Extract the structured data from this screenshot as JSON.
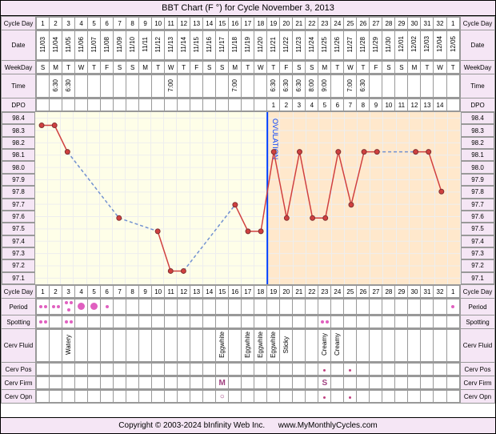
{
  "title": "BBT Chart (F °) for Cycle November 3, 2013",
  "copyright_text": "Copyright © 2003-2024 bInfinity Web Inc.",
  "site_url": "www.MyMonthlyCycles.com",
  "labels": {
    "cycle_day": "Cycle Day",
    "date": "Date",
    "weekday": "WeekDay",
    "time": "Time",
    "dpo": "DPO",
    "period": "Period",
    "spotting": "Spotting",
    "cerv_fluid": "Cerv Fluid",
    "cerv_pos": "Cerv Pos",
    "cerv_firm": "Cerv Firm",
    "cerv_opn": "Cerv Opn",
    "ovulation": "OVULATION"
  },
  "y_axis": {
    "min": 97.1,
    "max": 98.4,
    "step": 0.1,
    "ticks": [
      "98.4",
      "98.3",
      "98.2",
      "98.1",
      "98.0",
      "97.9",
      "97.8",
      "97.7",
      "97.6",
      "97.5",
      "97.4",
      "97.3",
      "97.2",
      "97.1"
    ]
  },
  "ovulation_day": 18,
  "n_days": 33,
  "colors": {
    "pre_ov_bg": "#fefee8",
    "post_ov_bg": "#ffe8cc",
    "line_solid": "#d04040",
    "line_dashed": "#7090d0",
    "ov_line": "#0040ff",
    "header_bg": "#f5e6f5",
    "point_fill": "#d04040"
  },
  "rows": {
    "cycle_day": [
      "1",
      "2",
      "3",
      "4",
      "5",
      "6",
      "7",
      "8",
      "9",
      "10",
      "11",
      "12",
      "13",
      "14",
      "15",
      "16",
      "17",
      "18",
      "19",
      "20",
      "21",
      "22",
      "23",
      "24",
      "25",
      "26",
      "27",
      "28",
      "29",
      "30",
      "31",
      "32",
      "1"
    ],
    "date": [
      "11/03",
      "11/04",
      "11/05",
      "11/06",
      "11/07",
      "11/08",
      "11/09",
      "11/10",
      "11/11",
      "11/12",
      "11/13",
      "11/14",
      "11/15",
      "11/16",
      "11/17",
      "11/18",
      "11/19",
      "11/20",
      "11/21",
      "11/22",
      "11/23",
      "11/24",
      "11/25",
      "11/26",
      "11/27",
      "11/28",
      "11/29",
      "11/30",
      "12/01",
      "12/02",
      "12/03",
      "12/04",
      "12/05"
    ],
    "weekday": [
      "S",
      "M",
      "T",
      "W",
      "T",
      "F",
      "S",
      "S",
      "M",
      "T",
      "W",
      "T",
      "F",
      "S",
      "S",
      "M",
      "T",
      "W",
      "T",
      "F",
      "S",
      "S",
      "M",
      "T",
      "W",
      "T",
      "F",
      "S",
      "S",
      "M",
      "T",
      "W",
      "T"
    ],
    "time": [
      "",
      "6:30",
      "6:30",
      "",
      "",
      "",
      "",
      "",
      "",
      "",
      "7:00",
      "",
      "",
      "",
      "",
      "7:00",
      "",
      "",
      "6:30",
      "6:30",
      "6:30",
      "8:00",
      "9:00",
      "",
      "7:00",
      "6:30",
      "",
      "",
      "",
      "",
      "",
      "",
      ""
    ],
    "dpo": [
      "",
      "",
      "",
      "",
      "",
      "",
      "",
      "",
      "",
      "",
      "",
      "",
      "",
      "",
      "",
      "",
      "",
      "",
      "1",
      "2",
      "3",
      "4",
      "5",
      "6",
      "7",
      "8",
      "9",
      "10",
      "11",
      "12",
      "13",
      "14",
      ""
    ]
  },
  "temps": [
    {
      "day": 1,
      "val": 98.3,
      "solid": true
    },
    {
      "day": 2,
      "val": 98.3,
      "solid": true
    },
    {
      "day": 3,
      "val": 98.1,
      "solid": true
    },
    {
      "day": 4,
      "val": null
    },
    {
      "day": 5,
      "val": null
    },
    {
      "day": 6,
      "val": null
    },
    {
      "day": 7,
      "val": 97.6,
      "solid": true
    },
    {
      "day": 8,
      "val": null
    },
    {
      "day": 9,
      "val": null
    },
    {
      "day": 10,
      "val": 97.5,
      "solid": true
    },
    {
      "day": 11,
      "val": 97.2,
      "solid": true
    },
    {
      "day": 12,
      "val": 97.2,
      "solid": true
    },
    {
      "day": 13,
      "val": null
    },
    {
      "day": 14,
      "val": null
    },
    {
      "day": 15,
      "val": null
    },
    {
      "day": 16,
      "val": 97.7,
      "solid": true
    },
    {
      "day": 17,
      "val": 97.5,
      "solid": true
    },
    {
      "day": 18,
      "val": 97.5,
      "solid": true
    },
    {
      "day": 19,
      "val": 98.1,
      "solid": true
    },
    {
      "day": 20,
      "val": 97.6,
      "solid": true
    },
    {
      "day": 21,
      "val": 98.1,
      "solid": true
    },
    {
      "day": 22,
      "val": 97.6,
      "solid": true
    },
    {
      "day": 23,
      "val": 97.6,
      "solid": true
    },
    {
      "day": 24,
      "val": 98.1,
      "solid": true
    },
    {
      "day": 25,
      "val": 97.7,
      "solid": true
    },
    {
      "day": 26,
      "val": 98.1,
      "solid": true
    },
    {
      "day": 27,
      "val": 98.1,
      "solid": true
    },
    {
      "day": 28,
      "val": null
    },
    {
      "day": 29,
      "val": null
    },
    {
      "day": 30,
      "val": 98.1,
      "solid": true
    },
    {
      "day": 31,
      "val": 98.1,
      "solid": true
    },
    {
      "day": 32,
      "val": 97.8,
      "solid": true
    }
  ],
  "period": [
    "dots2",
    "dots2",
    "dots3",
    "big",
    "big",
    "small",
    "",
    "",
    "",
    "",
    "",
    "",
    "",
    "",
    "",
    "",
    "",
    "",
    "",
    "",
    "",
    "",
    "",
    "",
    "",
    "",
    "",
    "",
    "",
    "",
    "",
    "",
    "small"
  ],
  "spotting": [
    "dots2",
    "",
    "dots2",
    "",
    "",
    "",
    "",
    "",
    "",
    "",
    "",
    "",
    "",
    "",
    "",
    "",
    "",
    "",
    "",
    "",
    "",
    "",
    "dots2",
    "",
    "",
    "",
    "",
    "",
    "",
    "",
    "",
    "",
    ""
  ],
  "cerv_fluid": [
    "",
    "",
    "Watery",
    "",
    "",
    "",
    "",
    "",
    "",
    "",
    "",
    "",
    "",
    "",
    "Eggwhite",
    "",
    "Eggwhite",
    "Eggwhite",
    "Eggwhite",
    "Sticky",
    "",
    "",
    "Creamy",
    "Creamy",
    "",
    "",
    "",
    "",
    "",
    "",
    "",
    "",
    ""
  ],
  "cerv_pos": [
    "",
    "",
    "",
    "",
    "",
    "",
    "",
    "",
    "",
    "",
    "",
    "",
    "",
    "",
    "",
    "",
    "",
    "",
    "",
    "",
    "",
    "",
    "dot",
    "",
    "dot",
    "",
    "",
    "",
    "",
    "",
    "",
    "",
    ""
  ],
  "cerv_firm": [
    "",
    "",
    "",
    "",
    "",
    "",
    "",
    "",
    "",
    "",
    "",
    "",
    "",
    "",
    "M",
    "",
    "",
    "",
    "",
    "",
    "",
    "",
    "S",
    "",
    "",
    "",
    "",
    "",
    "",
    "",
    "",
    "",
    ""
  ],
  "cerv_opn": [
    "",
    "",
    "",
    "",
    "",
    "",
    "",
    "",
    "",
    "",
    "",
    "",
    "",
    "",
    "O",
    "",
    "",
    "",
    "",
    "",
    "",
    "",
    "dot",
    "",
    "dot",
    "",
    "",
    "",
    "",
    "",
    "",
    "",
    ""
  ]
}
